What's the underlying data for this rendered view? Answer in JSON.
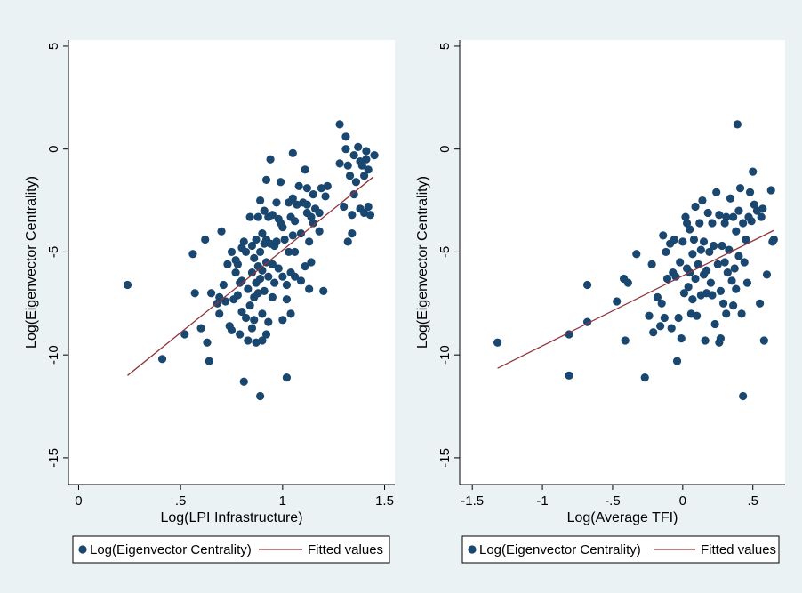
{
  "colors": {
    "outer_bg": "#eaf2f3",
    "plot_bg": "#ffffff",
    "marker": "#1a476f",
    "fit_line": "#90353b",
    "axis": "#000000"
  },
  "chart_data": [
    {
      "type": "scatter",
      "xlabel": "Log(LPI Infrastructure)",
      "ylabel": "Log(Eigenvector Centrality)",
      "xlim": [
        -0.05,
        1.55
      ],
      "ylim": [
        -16.3,
        5.3
      ],
      "xticks": [
        0,
        0.5,
        1,
        1.5
      ],
      "xtick_labels": [
        "0",
        ".5",
        "1",
        "1.5"
      ],
      "yticks": [
        -15,
        -10,
        -5,
        0,
        5
      ],
      "ytick_labels": [
        "-15",
        "-10",
        "-5",
        "0",
        "5"
      ],
      "grid": false,
      "legend_position": "bottom",
      "series": [
        {
          "name": "Log(Eigenvector Centrality)",
          "kind": "scatter",
          "points": [
            [
              0.24,
              -6.6
            ],
            [
              0.41,
              -10.2
            ],
            [
              0.52,
              -9.0
            ],
            [
              0.56,
              -5.1
            ],
            [
              0.57,
              -7.0
            ],
            [
              0.6,
              -8.7
            ],
            [
              0.62,
              -4.4
            ],
            [
              0.63,
              -9.4
            ],
            [
              0.64,
              -10.3
            ],
            [
              0.65,
              -7.0
            ],
            [
              0.68,
              -7.5
            ],
            [
              0.69,
              -7.2
            ],
            [
              0.69,
              -8.0
            ],
            [
              0.7,
              -4.0
            ],
            [
              0.71,
              -6.6
            ],
            [
              0.72,
              -7.4
            ],
            [
              0.73,
              -5.6
            ],
            [
              0.74,
              -8.6
            ],
            [
              0.75,
              -8.8
            ],
            [
              0.75,
              -5.0
            ],
            [
              0.76,
              -7.3
            ],
            [
              0.77,
              -6.0
            ],
            [
              0.77,
              -5.4
            ],
            [
              0.78,
              -5.6
            ],
            [
              0.78,
              -7.1
            ],
            [
              0.79,
              -6.5
            ],
            [
              0.79,
              -9.0
            ],
            [
              0.8,
              -4.8
            ],
            [
              0.8,
              -6.4
            ],
            [
              0.8,
              -7.9
            ],
            [
              0.81,
              -11.3
            ],
            [
              0.81,
              -4.5
            ],
            [
              0.82,
              -8.2
            ],
            [
              0.82,
              -5.0
            ],
            [
              0.83,
              -6.8
            ],
            [
              0.83,
              -9.3
            ],
            [
              0.84,
              -7.6
            ],
            [
              0.84,
              -3.3
            ],
            [
              0.85,
              -4.7
            ],
            [
              0.85,
              -6.0
            ],
            [
              0.85,
              -8.7
            ],
            [
              0.86,
              -5.3
            ],
            [
              0.86,
              -7.2
            ],
            [
              0.86,
              -8.3
            ],
            [
              0.87,
              -4.4
            ],
            [
              0.87,
              -6.5
            ],
            [
              0.87,
              -9.4
            ],
            [
              0.88,
              -3.3
            ],
            [
              0.88,
              -5.7
            ],
            [
              0.88,
              -7.0
            ],
            [
              0.89,
              -2.5
            ],
            [
              0.89,
              -5.0
            ],
            [
              0.89,
              -6.3
            ],
            [
              0.89,
              -12.0
            ],
            [
              0.9,
              -4.1
            ],
            [
              0.9,
              -5.9
            ],
            [
              0.9,
              -8.0
            ],
            [
              0.9,
              -9.3
            ],
            [
              0.91,
              -3.0
            ],
            [
              0.91,
              -4.6
            ],
            [
              0.91,
              -6.9
            ],
            [
              0.92,
              -1.5
            ],
            [
              0.92,
              -4.4
            ],
            [
              0.92,
              -5.5
            ],
            [
              0.92,
              -9.0
            ],
            [
              0.93,
              -3.3
            ],
            [
              0.93,
              -6.2
            ],
            [
              0.93,
              -8.4
            ],
            [
              0.94,
              -0.5
            ],
            [
              0.94,
              -4.6
            ],
            [
              0.95,
              -3.2
            ],
            [
              0.95,
              -5.6
            ],
            [
              0.95,
              -7.2
            ],
            [
              0.96,
              -4.7
            ],
            [
              0.96,
              -6.5
            ],
            [
              0.97,
              -2.6
            ],
            [
              0.97,
              -4.5
            ],
            [
              0.98,
              -3.4
            ],
            [
              0.98,
              -5.8
            ],
            [
              0.99,
              -1.6
            ],
            [
              0.99,
              -3.6
            ],
            [
              1.0,
              -6.2
            ],
            [
              1.0,
              -8.3
            ],
            [
              1.0,
              -3.8
            ],
            [
              1.01,
              -4.4
            ],
            [
              1.02,
              -6.6
            ],
            [
              1.02,
              -7.3
            ],
            [
              1.02,
              -11.1
            ],
            [
              1.03,
              -2.6
            ],
            [
              1.03,
              -5.0
            ],
            [
              1.04,
              -3.3
            ],
            [
              1.04,
              -6.0
            ],
            [
              1.04,
              -8.0
            ],
            [
              1.05,
              -0.2
            ],
            [
              1.05,
              -2.4
            ],
            [
              1.05,
              -4.2
            ],
            [
              1.06,
              -5.0
            ],
            [
              1.06,
              -6.2
            ],
            [
              1.06,
              -3.5
            ],
            [
              1.07,
              -2.7
            ],
            [
              1.08,
              -1.8
            ],
            [
              1.09,
              -4.1
            ],
            [
              1.09,
              -6.4
            ],
            [
              1.1,
              -2.6
            ],
            [
              1.11,
              -1.0
            ],
            [
              1.11,
              -5.7
            ],
            [
              1.12,
              -1.9
            ],
            [
              1.12,
              -3.1
            ],
            [
              1.12,
              -2.7
            ],
            [
              1.13,
              -4.5
            ],
            [
              1.13,
              -6.8
            ],
            [
              1.14,
              -3.3
            ],
            [
              1.14,
              -5.5
            ],
            [
              1.15,
              -2.2
            ],
            [
              1.15,
              -3.6
            ],
            [
              1.16,
              -2.9
            ],
            [
              1.18,
              -3.1
            ],
            [
              1.18,
              -4.0
            ],
            [
              1.19,
              -1.9
            ],
            [
              1.2,
              -6.9
            ],
            [
              1.21,
              -2.3
            ],
            [
              1.22,
              -1.8
            ],
            [
              1.28,
              1.2
            ],
            [
              1.28,
              -0.7
            ],
            [
              1.3,
              -2.8
            ],
            [
              1.31,
              0.6
            ],
            [
              1.31,
              0.0
            ],
            [
              1.32,
              -0.8
            ],
            [
              1.32,
              -4.5
            ],
            [
              1.33,
              -1.3
            ],
            [
              1.34,
              -3.2
            ],
            [
              1.34,
              -4.1
            ],
            [
              1.35,
              -0.3
            ],
            [
              1.35,
              -2.2
            ],
            [
              1.36,
              -1.6
            ],
            [
              1.37,
              0.1
            ],
            [
              1.38,
              -0.6
            ],
            [
              1.38,
              -2.9
            ],
            [
              1.39,
              -0.8
            ],
            [
              1.4,
              -1.3
            ],
            [
              1.4,
              -3.1
            ],
            [
              1.41,
              -0.1
            ],
            [
              1.41,
              -0.5
            ],
            [
              1.42,
              -1.0
            ],
            [
              1.42,
              -2.8
            ],
            [
              1.43,
              -3.2
            ],
            [
              1.45,
              -0.3
            ]
          ]
        },
        {
          "name": "Fitted values",
          "kind": "line",
          "points": [
            [
              0.24,
              -11.0
            ],
            [
              1.445,
              -1.35
            ]
          ]
        }
      ]
    },
    {
      "type": "scatter",
      "xlabel": "Log(Average TFI)",
      "ylabel": "Log(Eigenvector Centrality)",
      "xlim": [
        -1.59,
        0.73
      ],
      "ylim": [
        -16.3,
        5.3
      ],
      "xticks": [
        -1.5,
        -1,
        -0.5,
        0,
        0.5
      ],
      "xtick_labels": [
        "-1.5",
        "-1",
        "-.5",
        "0",
        ".5"
      ],
      "yticks": [
        -15,
        -10,
        -5,
        0,
        5
      ],
      "ytick_labels": [
        "-15",
        "-10",
        "-5",
        "0",
        "5"
      ],
      "grid": false,
      "legend_position": "bottom",
      "series": [
        {
          "name": "Log(Eigenvector Centrality)",
          "kind": "scatter",
          "points": [
            [
              -1.32,
              -9.4
            ],
            [
              -0.81,
              -9.0
            ],
            [
              -0.81,
              -11.0
            ],
            [
              -0.68,
              -6.6
            ],
            [
              -0.68,
              -8.4
            ],
            [
              -0.47,
              -7.4
            ],
            [
              -0.42,
              -6.3
            ],
            [
              -0.41,
              -9.3
            ],
            [
              -0.39,
              -6.5
            ],
            [
              -0.33,
              -5.1
            ],
            [
              -0.27,
              -11.1
            ],
            [
              -0.24,
              -8.1
            ],
            [
              -0.22,
              -5.6
            ],
            [
              -0.21,
              -8.9
            ],
            [
              -0.18,
              -7.2
            ],
            [
              -0.16,
              -8.6
            ],
            [
              -0.15,
              -7.5
            ],
            [
              -0.14,
              -4.2
            ],
            [
              -0.13,
              -8.2
            ],
            [
              -0.12,
              -5.0
            ],
            [
              -0.11,
              -6.3
            ],
            [
              -0.09,
              -4.6
            ],
            [
              -0.08,
              -8.7
            ],
            [
              -0.07,
              -6.0
            ],
            [
              -0.06,
              -4.4
            ],
            [
              -0.05,
              -6.2
            ],
            [
              -0.04,
              -10.3
            ],
            [
              -0.03,
              -8.2
            ],
            [
              -0.02,
              -5.5
            ],
            [
              -0.01,
              -9.2
            ],
            [
              0.0,
              -4.5
            ],
            [
              0.01,
              -7.0
            ],
            [
              0.02,
              -3.3
            ],
            [
              0.03,
              -5.8
            ],
            [
              0.03,
              -3.6
            ],
            [
              0.04,
              -6.7
            ],
            [
              0.05,
              -3.9
            ],
            [
              0.05,
              -6.0
            ],
            [
              0.06,
              -8.0
            ],
            [
              0.07,
              -5.1
            ],
            [
              0.07,
              -7.3
            ],
            [
              0.08,
              -4.4
            ],
            [
              0.09,
              -2.8
            ],
            [
              0.09,
              -6.3
            ],
            [
              0.1,
              -8.1
            ],
            [
              0.11,
              -5.6
            ],
            [
              0.12,
              -3.6
            ],
            [
              0.13,
              -7.1
            ],
            [
              0.13,
              -4.9
            ],
            [
              0.14,
              -2.5
            ],
            [
              0.15,
              -6.1
            ],
            [
              0.15,
              -4.5
            ],
            [
              0.16,
              -9.3
            ],
            [
              0.17,
              -5.9
            ],
            [
              0.17,
              -7.0
            ],
            [
              0.18,
              -3.1
            ],
            [
              0.19,
              -5.0
            ],
            [
              0.2,
              -6.5
            ],
            [
              0.21,
              -3.6
            ],
            [
              0.21,
              -7.1
            ],
            [
              0.22,
              -4.7
            ],
            [
              0.23,
              -8.5
            ],
            [
              0.24,
              -2.1
            ],
            [
              0.25,
              -5.6
            ],
            [
              0.26,
              -3.2
            ],
            [
              0.26,
              -9.4
            ],
            [
              0.27,
              -6.9
            ],
            [
              0.27,
              -9.2
            ],
            [
              0.28,
              -4.7
            ],
            [
              0.29,
              -7.5
            ],
            [
              0.3,
              -3.6
            ],
            [
              0.3,
              -5.5
            ],
            [
              0.31,
              -3.3
            ],
            [
              0.31,
              -8.0
            ],
            [
              0.32,
              -6.0
            ],
            [
              0.33,
              -4.9
            ],
            [
              0.34,
              -2.4
            ],
            [
              0.35,
              -6.4
            ],
            [
              0.36,
              -7.6
            ],
            [
              0.36,
              -3.3
            ],
            [
              0.37,
              -5.8
            ],
            [
              0.38,
              -4.0
            ],
            [
              0.38,
              -6.8
            ],
            [
              0.39,
              1.2
            ],
            [
              0.4,
              -3.0
            ],
            [
              0.4,
              -5.2
            ],
            [
              0.41,
              -1.9
            ],
            [
              0.42,
              -8.0
            ],
            [
              0.43,
              -3.6
            ],
            [
              0.43,
              -12.0
            ],
            [
              0.44,
              -5.5
            ],
            [
              0.45,
              -4.4
            ],
            [
              0.46,
              -6.5
            ],
            [
              0.47,
              -3.3
            ],
            [
              0.48,
              -2.1
            ],
            [
              0.49,
              -3.5
            ],
            [
              0.5,
              -1.1
            ],
            [
              0.51,
              -2.7
            ],
            [
              0.53,
              -3.0
            ],
            [
              0.55,
              -7.5
            ],
            [
              0.56,
              -3.3
            ],
            [
              0.57,
              -2.9
            ],
            [
              0.58,
              -9.3
            ],
            [
              0.6,
              -6.1
            ],
            [
              0.63,
              -2.0
            ],
            [
              0.64,
              -4.5
            ],
            [
              0.65,
              -4.4
            ]
          ]
        },
        {
          "name": "Fitted values",
          "kind": "line",
          "points": [
            [
              -1.32,
              -10.65
            ],
            [
              0.65,
              -3.95
            ]
          ]
        }
      ]
    }
  ]
}
